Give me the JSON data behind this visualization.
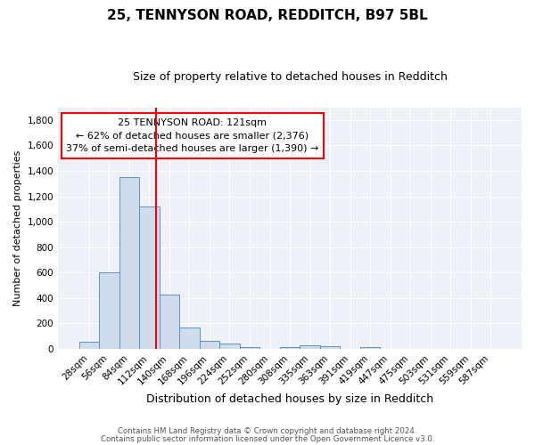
{
  "title1": "25, TENNYSON ROAD, REDDITCH, B97 5BL",
  "title2": "Size of property relative to detached houses in Redditch",
  "xlabel": "Distribution of detached houses by size in Redditch",
  "ylabel": "Number of detached properties",
  "bar_labels": [
    "28sqm",
    "56sqm",
    "84sqm",
    "112sqm",
    "140sqm",
    "168sqm",
    "196sqm",
    "224sqm",
    "252sqm",
    "280sqm",
    "308sqm",
    "335sqm",
    "363sqm",
    "391sqm",
    "419sqm",
    "447sqm",
    "475sqm",
    "503sqm",
    "531sqm",
    "559sqm",
    "587sqm"
  ],
  "bar_values": [
    55,
    600,
    1350,
    1120,
    425,
    170,
    60,
    40,
    15,
    0,
    15,
    30,
    20,
    0,
    15,
    0,
    0,
    0,
    0,
    0,
    0
  ],
  "bar_color": "#cfdcec",
  "bar_edge_color": "#5b8fc9",
  "vline_color": "red",
  "annotation_line1": "25 TENNYSON ROAD: 121sqm",
  "annotation_line2": "← 62% of detached houses are smaller (2,376)",
  "annotation_line3": "37% of semi-detached houses are larger (1,390) →",
  "annotation_box_color": "white",
  "annotation_box_edge": "red",
  "ylim": [
    0,
    1900
  ],
  "yticks": [
    0,
    200,
    400,
    600,
    800,
    1000,
    1200,
    1400,
    1600,
    1800
  ],
  "footer1": "Contains HM Land Registry data © Crown copyright and database right 2024.",
  "footer2": "Contains public sector information licensed under the Open Government Licence v3.0.",
  "bg_color": "#ffffff",
  "plot_bg_color": "#eef2f8",
  "grid_color": "#ffffff",
  "title1_fontsize": 11,
  "title2_fontsize": 9
}
